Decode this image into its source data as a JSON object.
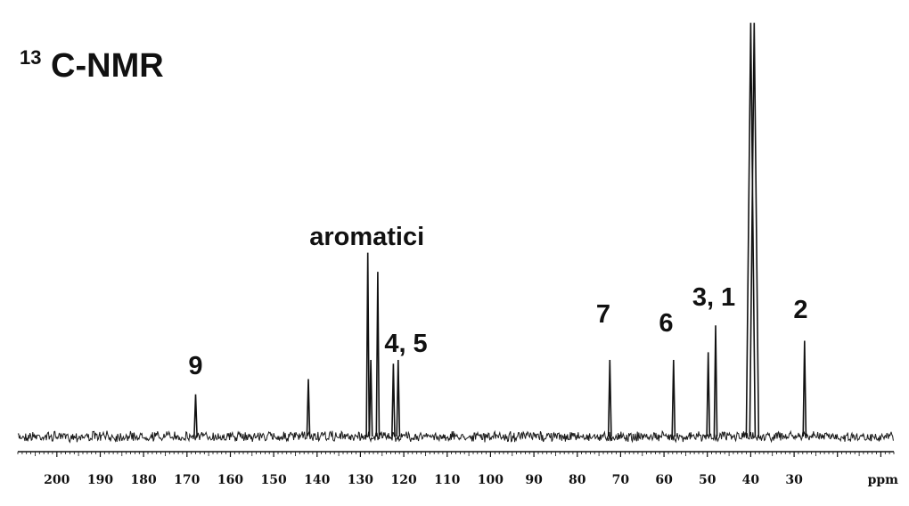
{
  "title": {
    "superscript": "13",
    "main": "C-NMR"
  },
  "chart_data": {
    "type": "line",
    "title": "13C-NMR",
    "xlabel": "ppm",
    "ylabel": "",
    "xlim": [
      209,
      7
    ],
    "x_reversed": true,
    "grid": false,
    "x_ticks": [
      200,
      190,
      180,
      170,
      160,
      150,
      140,
      130,
      120,
      110,
      100,
      90,
      80,
      70,
      60,
      50,
      40,
      30
    ],
    "peaks": [
      {
        "ppm": 168.0,
        "height": 0.11
      },
      {
        "ppm": 142.0,
        "height": 0.15
      },
      {
        "ppm": 128.3,
        "height": 0.48
      },
      {
        "ppm": 127.6,
        "height": 0.2
      },
      {
        "ppm": 126.0,
        "height": 0.43
      },
      {
        "ppm": 122.4,
        "height": 0.19
      },
      {
        "ppm": 121.3,
        "height": 0.2
      },
      {
        "ppm": 72.5,
        "height": 0.2
      },
      {
        "ppm": 57.8,
        "height": 0.2
      },
      {
        "ppm": 49.8,
        "height": 0.22
      },
      {
        "ppm": 48.1,
        "height": 0.29
      },
      {
        "ppm": 40.0,
        "height": 1.08
      },
      {
        "ppm": 39.2,
        "height": 1.08
      },
      {
        "ppm": 27.6,
        "height": 0.25
      }
    ],
    "annotations": [
      {
        "text": "aromatici",
        "ppm": 128.5
      },
      {
        "text": "9",
        "ppm": 168.0
      },
      {
        "text": "4, 5",
        "ppm": 119.5
      },
      {
        "text": "7",
        "ppm": 74.0
      },
      {
        "text": "6",
        "ppm": 59.5
      },
      {
        "text": "3, 1",
        "ppm": 48.5
      },
      {
        "text": "2",
        "ppm": 28.5
      }
    ]
  }
}
